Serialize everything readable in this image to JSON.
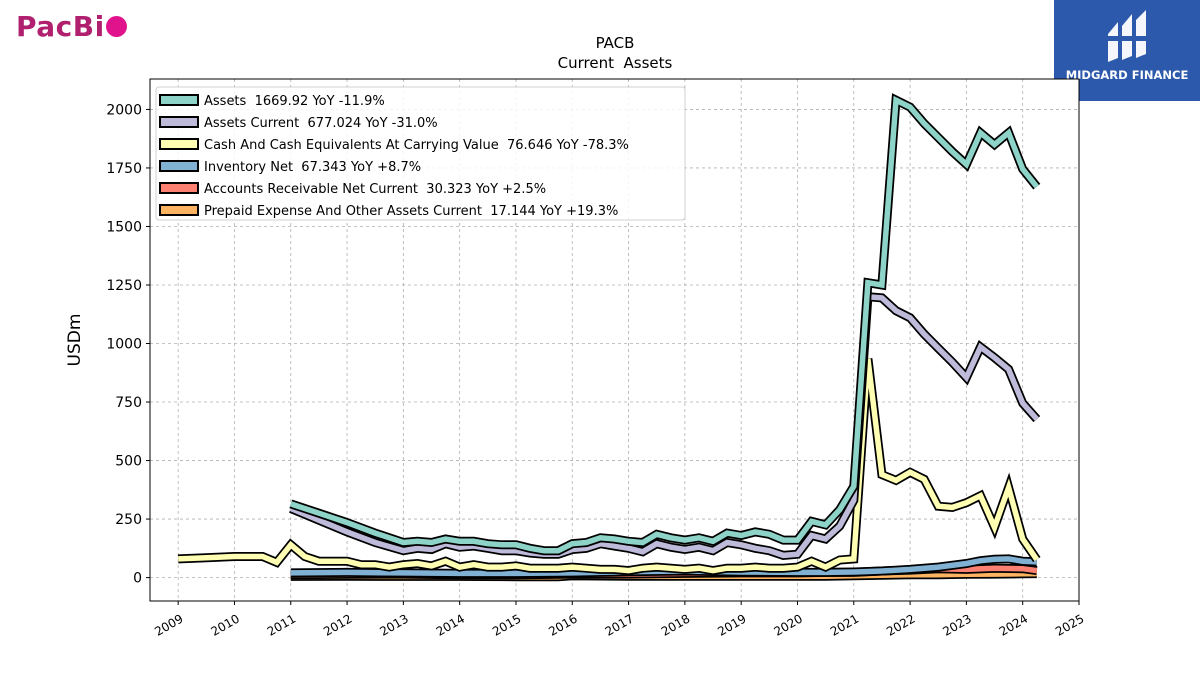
{
  "brand": {
    "logo_text": "PacBi",
    "watermark_text": "MIDGARD FINANCE"
  },
  "chart_data": {
    "type": "line",
    "title": "PACB",
    "subtitle": "Current  Assets",
    "ylabel": "USDm",
    "xlabel": "",
    "xlim": [
      2008.5,
      2025.0
    ],
    "ylim": [
      -100,
      2130
    ],
    "y_ticks": [
      0,
      250,
      500,
      750,
      1000,
      1250,
      1500,
      1750,
      2000
    ],
    "x_ticks": [
      2009,
      2010,
      2011,
      2012,
      2013,
      2014,
      2015,
      2016,
      2017,
      2018,
      2019,
      2020,
      2021,
      2022,
      2023,
      2024,
      2025
    ],
    "grid": true,
    "legend_position": "top-left",
    "series": [
      {
        "name": "Assets  1669.92 YoY -11.9%",
        "color": "#8dd3c7",
        "x": [
          2011.0,
          2011.5,
          2012.0,
          2012.5,
          2013.0,
          2013.25,
          2013.5,
          2013.75,
          2014.0,
          2014.25,
          2014.5,
          2014.75,
          2015.0,
          2015.25,
          2015.5,
          2015.75,
          2016.0,
          2016.25,
          2016.5,
          2016.75,
          2017.0,
          2017.25,
          2017.5,
          2017.75,
          2018.0,
          2018.25,
          2018.5,
          2018.75,
          2019.0,
          2019.25,
          2019.5,
          2019.75,
          2020.0,
          2020.25,
          2020.5,
          2020.75,
          2021.0,
          2021.25,
          2021.5,
          2021.75,
          2022.0,
          2022.25,
          2022.5,
          2022.75,
          2023.0,
          2023.25,
          2023.5,
          2023.75,
          2024.0,
          2024.25
        ],
        "values": [
          315,
          275,
          235,
          190,
          150,
          155,
          150,
          165,
          155,
          155,
          145,
          140,
          140,
          125,
          115,
          115,
          145,
          150,
          170,
          165,
          155,
          150,
          185,
          170,
          160,
          170,
          155,
          190,
          180,
          195,
          185,
          160,
          160,
          240,
          225,
          290,
          390,
          1260,
          1250,
          2040,
          2010,
          1940,
          1880,
          1820,
          1765,
          1900,
          1850,
          1900,
          1745,
          1670
        ]
      },
      {
        "name": "Assets Current  677.024 YoY -31.0%",
        "color": "#bebada",
        "x": [
          2011.0,
          2011.5,
          2012.0,
          2012.5,
          2013.0,
          2013.25,
          2013.5,
          2013.75,
          2014.0,
          2014.25,
          2014.5,
          2014.75,
          2015.0,
          2015.25,
          2015.5,
          2015.75,
          2016.0,
          2016.25,
          2016.5,
          2016.75,
          2017.0,
          2017.25,
          2017.5,
          2017.75,
          2018.0,
          2018.25,
          2018.5,
          2018.75,
          2019.0,
          2019.25,
          2019.5,
          2019.75,
          2020.0,
          2020.25,
          2020.5,
          2020.75,
          2021.0,
          2021.25,
          2021.5,
          2021.75,
          2022.0,
          2022.25,
          2022.5,
          2022.75,
          2023.0,
          2023.25,
          2023.5,
          2023.75,
          2024.0,
          2024.25
        ],
        "values": [
          295,
          245,
          195,
          150,
          115,
          125,
          120,
          145,
          130,
          135,
          125,
          115,
          115,
          105,
          100,
          100,
          120,
          125,
          145,
          135,
          125,
          110,
          145,
          130,
          120,
          130,
          115,
          150,
          140,
          125,
          115,
          95,
          100,
          180,
          165,
          220,
          330,
          1200,
          1195,
          1140,
          1110,
          1040,
          980,
          920,
          855,
          985,
          940,
          890,
          745,
          677
        ]
      },
      {
        "name": "Cash And Cash Equivalents At Carrying Value  76.646 YoY -78.3%",
        "color": "#ffffb3",
        "x": [
          2009.0,
          2009.5,
          2010.0,
          2010.5,
          2010.75,
          2011.0,
          2011.25,
          2011.5,
          2012.0,
          2012.25,
          2012.5,
          2012.75,
          2013.0,
          2013.25,
          2013.5,
          2013.75,
          2014.0,
          2014.25,
          2014.5,
          2014.75,
          2015.0,
          2015.25,
          2015.5,
          2015.75,
          2016.0,
          2016.25,
          2016.5,
          2016.75,
          2017.0,
          2017.25,
          2017.5,
          2017.75,
          2018.0,
          2018.25,
          2018.5,
          2018.75,
          2019.0,
          2019.25,
          2019.5,
          2019.75,
          2020.0,
          2020.25,
          2020.5,
          2020.75,
          2021.0,
          2021.25,
          2021.5,
          2021.75,
          2022.0,
          2022.25,
          2022.5,
          2022.75,
          2023.0,
          2023.25,
          2023.5,
          2023.75,
          2024.0,
          2024.25
        ],
        "values": [
          80,
          85,
          90,
          90,
          65,
          140,
          90,
          70,
          70,
          55,
          55,
          45,
          55,
          60,
          50,
          70,
          45,
          55,
          45,
          45,
          50,
          40,
          40,
          40,
          45,
          40,
          35,
          35,
          30,
          40,
          45,
          40,
          35,
          40,
          30,
          40,
          40,
          45,
          40,
          40,
          45,
          70,
          45,
          75,
          80,
          935,
          440,
          415,
          450,
          420,
          305,
          300,
          320,
          350,
          215,
          385,
          165,
          77
        ]
      },
      {
        "name": "Inventory Net  67.343 YoY +8.7%",
        "color": "#80b1d3",
        "x": [
          2011.0,
          2012.0,
          2013.0,
          2014.0,
          2015.0,
          2016.0,
          2017.0,
          2018.0,
          2019.0,
          2020.0,
          2020.5,
          2021.0,
          2021.5,
          2022.0,
          2022.5,
          2023.0,
          2023.25,
          2023.5,
          2023.75,
          2024.0,
          2024.25
        ],
        "values": [
          20,
          22,
          20,
          18,
          18,
          20,
          25,
          28,
          24,
          22,
          22,
          24,
          28,
          35,
          45,
          60,
          72,
          78,
          80,
          70,
          67
        ]
      },
      {
        "name": "Accounts Receivable Net Current  30.323 YoY +2.5%",
        "color": "#fb8072",
        "x": [
          2011.0,
          2012.0,
          2013.0,
          2014.0,
          2015.0,
          2016.0,
          2017.0,
          2018.0,
          2019.0,
          2020.0,
          2020.5,
          2021.0,
          2021.5,
          2022.0,
          2022.5,
          2023.0,
          2023.5,
          2024.0,
          2024.25
        ],
        "values": [
          12,
          14,
          15,
          12,
          12,
          15,
          15,
          18,
          20,
          20,
          22,
          22,
          28,
          32,
          38,
          35,
          40,
          38,
          30
        ]
      },
      {
        "name": "Prepaid Expense And Other Assets Current  17.144 YoY +19.3%",
        "color": "#fdb462",
        "x": [
          2011.0,
          2012.0,
          2013.0,
          2014.0,
          2015.0,
          2015.75,
          2016.0,
          2017.0,
          2018.0,
          2019.0,
          2020.0,
          2020.5,
          2021.0,
          2021.5,
          2022.0,
          2022.5,
          2023.0,
          2023.5,
          2024.0,
          2024.25
        ],
        "values": [
          5,
          6,
          5,
          5,
          4,
          4,
          8,
          6,
          6,
          6,
          6,
          6,
          8,
          10,
          12,
          12,
          14,
          15,
          16,
          17
        ]
      }
    ]
  }
}
